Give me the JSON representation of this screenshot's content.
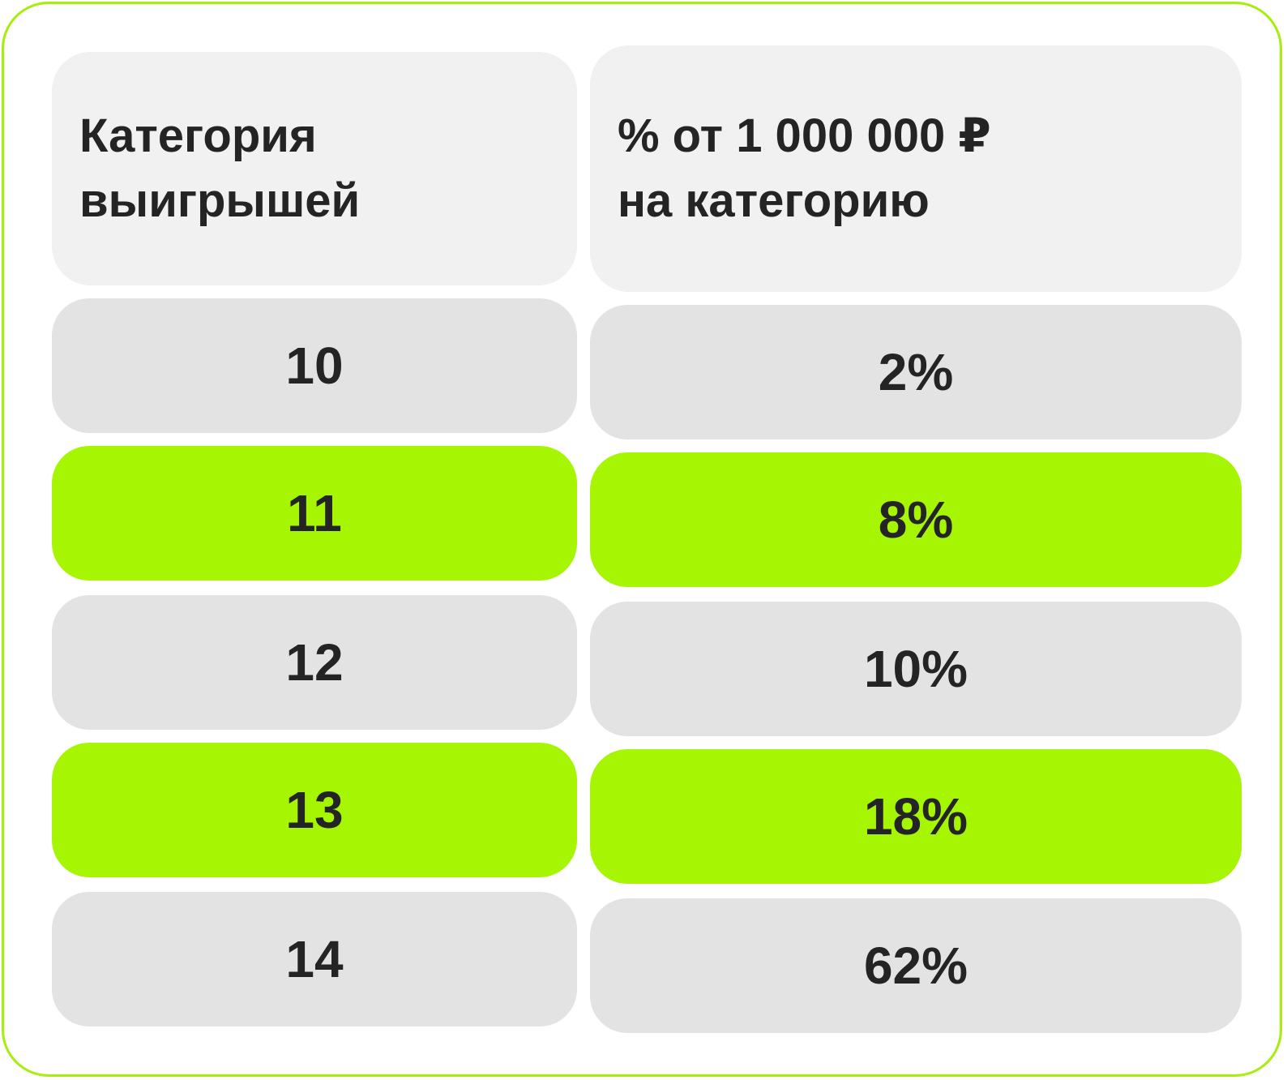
{
  "table": {
    "headers": [
      "Категория\nвыигрышей",
      "% от 1 000 000 ₽\nна категорию"
    ],
    "rows": [
      {
        "category": "10",
        "percent": "2%",
        "highlight": false
      },
      {
        "category": "11",
        "percent": "8%",
        "highlight": true
      },
      {
        "category": "12",
        "percent": "10%",
        "highlight": false
      },
      {
        "category": "13",
        "percent": "18%",
        "highlight": true
      },
      {
        "category": "14",
        "percent": "62%",
        "highlight": false
      }
    ]
  },
  "colors": {
    "border": "#a8ee0d",
    "header_bg": "#f1f1f1",
    "row_bg": "#e3e3e3",
    "highlight_bg": "#a6f502",
    "text": "#242424"
  }
}
